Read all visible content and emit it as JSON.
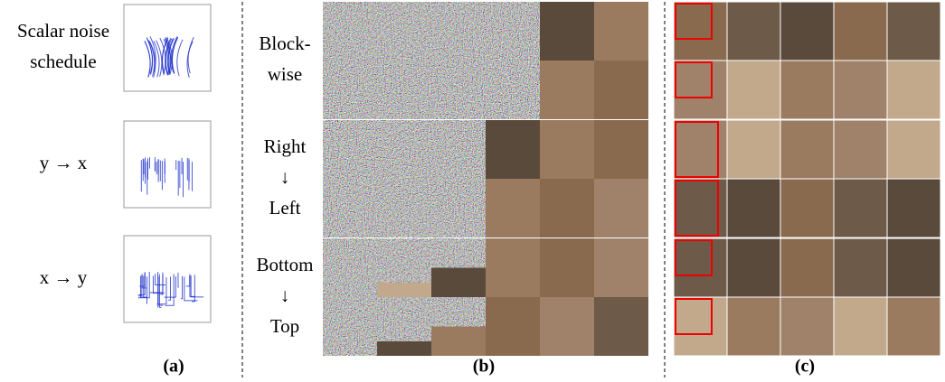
{
  "panel_a": {
    "rows": [
      [
        "Scalar noise",
        "schedule"
      ],
      [
        "y → x"
      ],
      [
        "x → y"
      ]
    ],
    "caption": "(a)"
  },
  "panel_b": {
    "rows": [
      [
        "Block-",
        "wise"
      ],
      [
        "Right",
        "↓",
        "Left"
      ],
      [
        "Bottom",
        "↓",
        "Top"
      ]
    ],
    "caption": "(b)"
  },
  "panel_c": {
    "caption": "(c)"
  }
}
